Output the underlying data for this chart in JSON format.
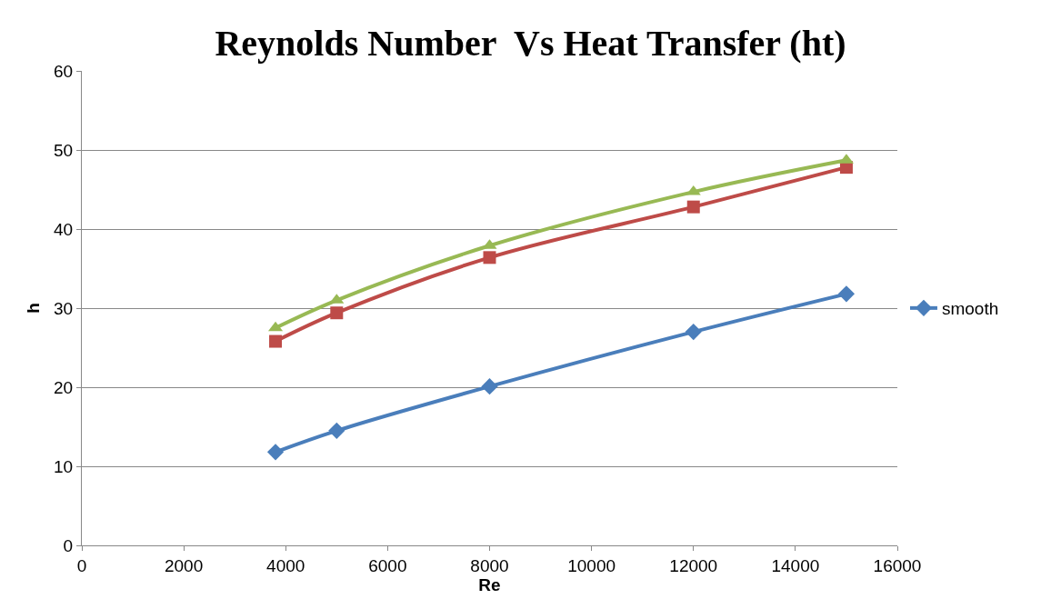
{
  "chart_data": {
    "type": "line",
    "title": "Reynolds Number  Vs Heat Transfer (ht)",
    "xlabel": "Re",
    "ylabel": "h",
    "x": [
      3800,
      5000,
      8000,
      12000,
      15000
    ],
    "series": [
      {
        "name": "smooth",
        "color": "#4a7ebb",
        "marker": "diamond",
        "values": [
          11.8,
          14.5,
          20.1,
          27.0,
          31.8
        ]
      },
      {
        "color": "#be4b48",
        "marker": "square",
        "values": [
          25.8,
          29.4,
          36.4,
          42.8,
          47.8
        ]
      },
      {
        "color": "#98b954",
        "marker": "triangle",
        "values": [
          27.5,
          31.0,
          37.9,
          44.7,
          48.7
        ]
      }
    ],
    "xlim": [
      0,
      16000
    ],
    "xticks": [
      0,
      2000,
      4000,
      6000,
      8000,
      10000,
      12000,
      14000,
      16000
    ],
    "ylim": [
      0,
      60
    ],
    "yticks": [
      0,
      10,
      20,
      30,
      40,
      50,
      60
    ],
    "grid": "y",
    "legend": "right"
  }
}
